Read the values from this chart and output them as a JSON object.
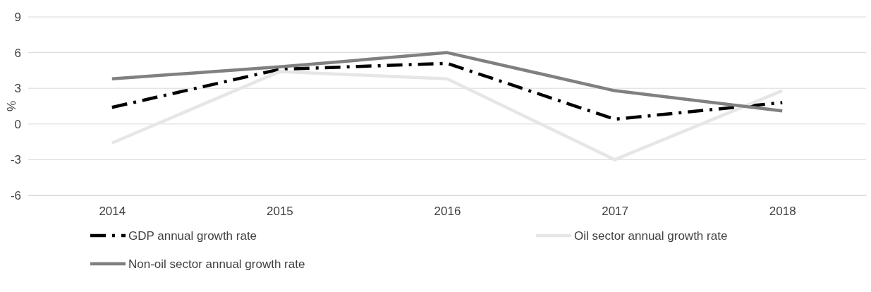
{
  "chart_data": {
    "type": "line",
    "ylabel": "%",
    "categories": [
      "2014",
      "2015",
      "2016",
      "2017",
      "2018"
    ],
    "series": [
      {
        "name": "GDP annual growth rate",
        "color": "#000000",
        "line_style": "dashed",
        "values": [
          1.4,
          4.6,
          5.1,
          0.4,
          1.8
        ]
      },
      {
        "name": "Oil sector annual growth rate",
        "color": "#e6e6e6",
        "line_style": "solid",
        "values": [
          -1.6,
          4.4,
          3.8,
          -3.0,
          2.8
        ]
      },
      {
        "name": "Non-oil sector annual growth rate",
        "color": "#808080",
        "line_style": "solid",
        "values": [
          3.8,
          4.8,
          6.0,
          2.8,
          1.1
        ]
      }
    ],
    "ylim": [
      -6,
      9
    ],
    "yticks": [
      -6,
      -3,
      0,
      3,
      6,
      9
    ],
    "grid": "y",
    "legend": "bottom",
    "marker": "none"
  }
}
